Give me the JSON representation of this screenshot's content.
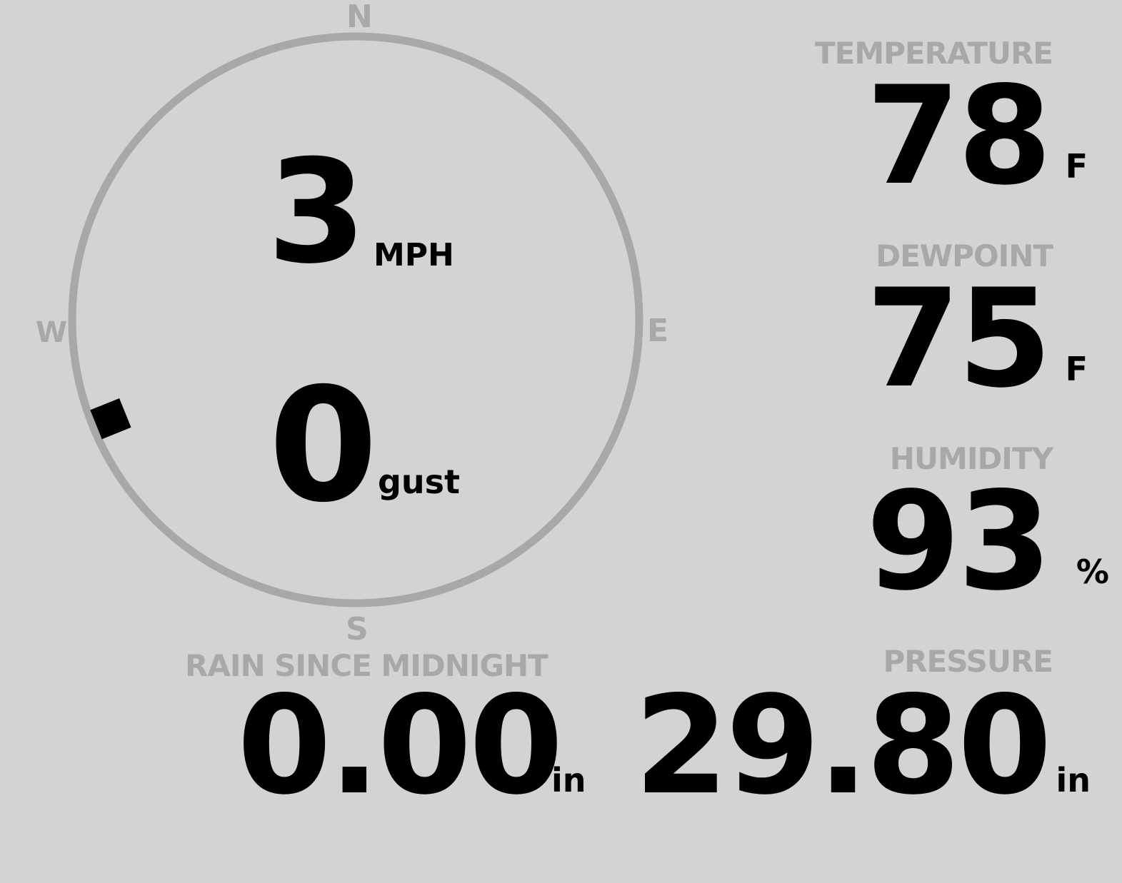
{
  "wind": {
    "speed": "3",
    "speed_unit": "MPH",
    "gust": "0",
    "gust_unit": "gust",
    "direction_degrees": 248,
    "compass": {
      "n": "N",
      "e": "E",
      "s": "S",
      "w": "W"
    }
  },
  "temperature": {
    "label": "TEMPERATURE",
    "value": "78",
    "unit": "F"
  },
  "dewpoint": {
    "label": "DEWPOINT",
    "value": "75",
    "unit": "F"
  },
  "humidity": {
    "label": "HUMIDITY",
    "value": "93",
    "unit": "%"
  },
  "rain": {
    "label": "RAIN SINCE MIDNIGHT",
    "value": "0.00",
    "unit": "in"
  },
  "pressure": {
    "label": "PRESSURE",
    "value": "29.80",
    "unit": "in"
  },
  "colors": {
    "background": "#d3d3d3",
    "dial": "#a8a8a8",
    "value": "#000000"
  }
}
